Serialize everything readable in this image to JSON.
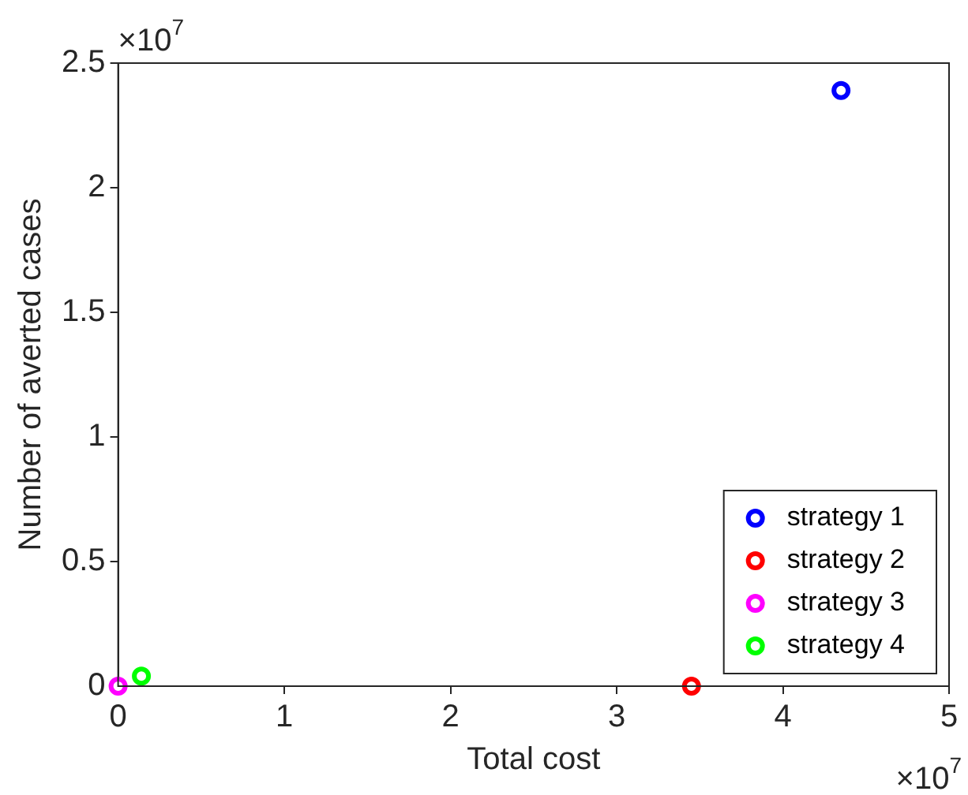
{
  "chart_data": {
    "type": "scatter",
    "xlabel": "Total cost",
    "ylabel": "Number of averted cases",
    "xlim": [
      0,
      5
    ],
    "xticks": [
      0,
      1,
      2,
      3,
      4,
      5
    ],
    "ylim": [
      0,
      2.5
    ],
    "yticks": [
      0,
      0.5,
      1,
      1.5,
      2,
      2.5
    ],
    "series": [
      {
        "name": "strategy 1",
        "color": "#0000ff",
        "x": [
          4.35
        ],
        "values": [
          2.39
        ]
      },
      {
        "name": "strategy 2",
        "color": "#ff0000",
        "x": [
          3.45
        ],
        "values": [
          0
        ]
      },
      {
        "name": "strategy 3",
        "color": "#ff00ff",
        "x": [
          0
        ],
        "values": [
          0
        ]
      },
      {
        "name": "strategy 4",
        "color": "#00ff00",
        "x": [
          0.14
        ],
        "values": [
          0.04
        ]
      }
    ],
    "marker": "circle",
    "legend": "bottom right",
    "grid": false,
    "annotations": [
      "×10$^{7}$",
      "×10$^{7}$"
    ]
  }
}
